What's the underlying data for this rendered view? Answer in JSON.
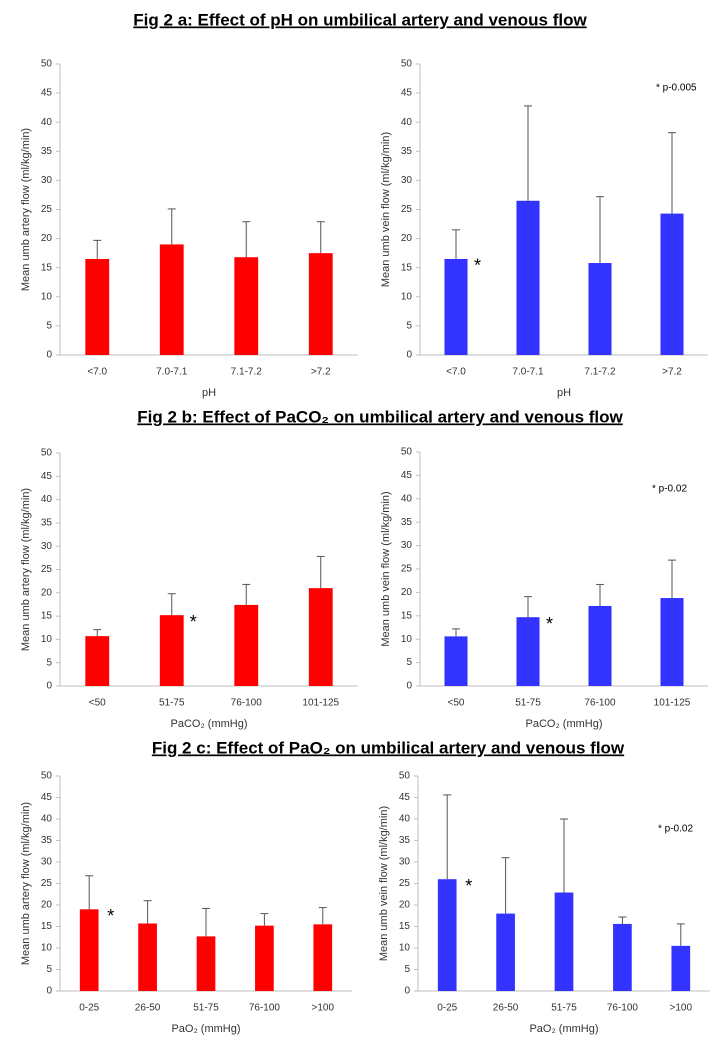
{
  "headings": [
    "Fig 2 a: Effect of pH on umbilical artery and venous flow",
    "Fig 2 b: Effect of PaCO₂ on umbilical artery and venous flow",
    "Fig 2 c: Effect of PaO₂ on umbilical artery and venous flow"
  ],
  "chart_data": [
    {
      "type": "bar",
      "ylabel": "Mean umb artery flow (ml/kg/min)",
      "xlabel": "pH",
      "categories": [
        "<7.0",
        "7.0-7.1",
        "7.1-7.2",
        ">7.2"
      ],
      "values": [
        16.5,
        19,
        16.8,
        17.5
      ],
      "errors": [
        3.2,
        6.1,
        6.1,
        5.4
      ],
      "color": "#ff0000",
      "ylim": [
        0,
        50
      ],
      "yticks": [
        0,
        5,
        10,
        15,
        20,
        25,
        30,
        35,
        40,
        45,
        50
      ]
    },
    {
      "type": "bar",
      "ylabel": "Mean umb vein flow (ml/kg/min)",
      "xlabel": "pH",
      "categories": [
        "<7.0",
        "7.0-7.1",
        "7.1-7.2",
        ">7.2"
      ],
      "values": [
        16.5,
        26.5,
        15.8,
        24.3
      ],
      "errors": [
        5,
        16.3,
        11.4,
        13.9
      ],
      "color": "#3333ff",
      "ylim": [
        0,
        50
      ],
      "yticks": [
        0,
        5,
        10,
        15,
        20,
        25,
        30,
        35,
        40,
        45,
        50
      ],
      "marker": "*",
      "note": "* p-0.005"
    },
    {
      "type": "bar",
      "ylabel": "Mean umb artery flow (ml/kg/min)",
      "xlabel": "PaCO₂ (mmHg)",
      "categories": [
        "<50",
        "51-75",
        "76-100",
        "101-125"
      ],
      "values": [
        10.7,
        15.2,
        17.4,
        21
      ],
      "errors": [
        1.4,
        4.6,
        4.4,
        6.8
      ],
      "color": "#ff0000",
      "ylim": [
        0,
        50
      ],
      "yticks": [
        0,
        5,
        10,
        15,
        20,
        25,
        30,
        35,
        40,
        45,
        50
      ],
      "marker": "*"
    },
    {
      "type": "bar",
      "ylabel": "Mean umb vein flow (ml/kg/min)",
      "xlabel": "PaCO₂ (mmHg)",
      "categories": [
        "<50",
        "51-75",
        "76-100",
        "101-125"
      ],
      "values": [
        10.6,
        14.7,
        17.1,
        18.8
      ],
      "errors": [
        1.6,
        4.4,
        4.6,
        8.1
      ],
      "color": "#3333ff",
      "ylim": [
        0,
        50
      ],
      "yticks": [
        0,
        5,
        10,
        15,
        20,
        25,
        30,
        35,
        40,
        45,
        50
      ],
      "marker": "*",
      "note": "* p-0.02"
    },
    {
      "type": "bar",
      "ylabel": "Mean umb artery flow (ml/kg/min)",
      "xlabel": "PaO₂ (mmHg)",
      "categories": [
        "0-25",
        "26-50",
        "51-75",
        "76-100",
        ">100"
      ],
      "values": [
        19,
        15.7,
        12.7,
        15.2,
        15.5
      ],
      "errors": [
        7.8,
        5.3,
        6.5,
        2.8,
        3.9
      ],
      "color": "#ff0000",
      "ylim": [
        0,
        50
      ],
      "yticks": [
        0,
        5,
        10,
        15,
        20,
        25,
        30,
        35,
        40,
        45,
        50
      ],
      "marker": "*"
    },
    {
      "type": "bar",
      "ylabel": "Mean umb vein flow (ml/kg/min)",
      "xlabel": "PaO₂ (mmHg)",
      "categories": [
        "0-25",
        "26-50",
        "51-75",
        "76-100",
        ">100"
      ],
      "values": [
        26,
        18,
        22.9,
        15.6,
        10.5
      ],
      "errors": [
        19.6,
        13,
        17.1,
        1.6,
        5.1
      ],
      "color": "#3333ff",
      "ylim": [
        0,
        50
      ],
      "yticks": [
        0,
        5,
        10,
        15,
        20,
        25,
        30,
        35,
        40,
        45,
        50
      ],
      "marker": "*",
      "note": "* p-0.02"
    }
  ]
}
